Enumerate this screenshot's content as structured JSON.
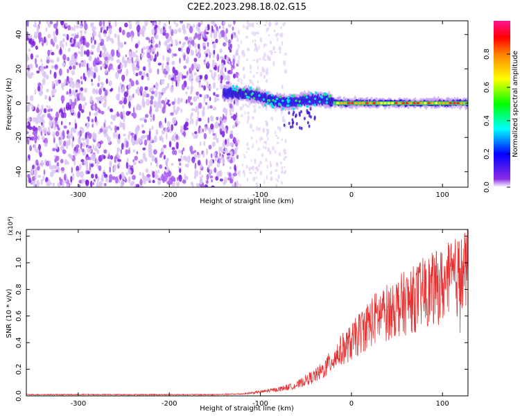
{
  "title": "C2E2.2023.298.18.02.G15",
  "colors": {
    "snr_line": "#e83232",
    "axis": "#000000",
    "spectrum_base": "#8a2be2"
  },
  "chart_data": [
    {
      "type": "heatmap",
      "name": "spectrogram",
      "xlabel": "Height of straight line (km)",
      "ylabel": "Frequency (Hz)",
      "xlim": [
        -357,
        128
      ],
      "ylim": [
        -49,
        48
      ],
      "xticks": [
        -300,
        -200,
        -100,
        0,
        100
      ],
      "xtick_labels": [
        "-300",
        "-200",
        "-100",
        "0",
        "100"
      ],
      "yticks": [
        -40,
        -20,
        0,
        20,
        40
      ],
      "ytick_labels": [
        "-40",
        "-20",
        "0",
        "20",
        "40"
      ],
      "colorbar": {
        "label": "Normalized spectral amplitude",
        "range": [
          0,
          1
        ],
        "ticks": [
          0.0,
          0.2,
          0.4,
          0.6,
          0.8
        ],
        "tick_labels": [
          "0.0",
          "0.2",
          "0.4",
          "0.6",
          "0.8"
        ],
        "colormap": [
          "#ffffff",
          "#8a2be2",
          "#0000ff",
          "#00ffff",
          "#00ff00",
          "#ffff00",
          "#ff8000",
          "#ff0000",
          "#ff1493"
        ]
      },
      "noise_region_x": [
        -357,
        -125
      ],
      "signal_centerline": [
        {
          "x": -130,
          "y": 6
        },
        {
          "x": -110,
          "y": 5
        },
        {
          "x": -90,
          "y": 2
        },
        {
          "x": -70,
          "y": 0
        },
        {
          "x": -50,
          "y": 2
        },
        {
          "x": -30,
          "y": 2
        },
        {
          "x": -10,
          "y": 0
        },
        {
          "x": 0,
          "y": 0
        },
        {
          "x": 50,
          "y": 0
        },
        {
          "x": 100,
          "y": 0
        },
        {
          "x": 128,
          "y": 0
        }
      ]
    },
    {
      "type": "line",
      "name": "snr",
      "xlabel": "Height of straight line (km)",
      "ylabel": "SNR (10 * v/v)",
      "y_multiplier": "(x10⁴)",
      "xlim": [
        -357,
        128
      ],
      "ylim": [
        0,
        1.25
      ],
      "xticks": [
        -300,
        -200,
        -100,
        0,
        100
      ],
      "xtick_labels": [
        "-300",
        "-200",
        "-100",
        "0",
        "100"
      ],
      "yticks": [
        0.0,
        0.2,
        0.4,
        0.6,
        0.8,
        1.0,
        1.2
      ],
      "ytick_labels": [
        "0.0",
        "0.2",
        "0.4",
        "0.6",
        "0.8",
        "1.0",
        "1.2"
      ],
      "series": [
        {
          "x": [
            -357,
            -300,
            -250,
            -200,
            -150,
            -120,
            -100,
            -80,
            -60,
            -50,
            -40,
            -30,
            -20,
            -10,
            0,
            10,
            20,
            30,
            40,
            50,
            60,
            70,
            80,
            90,
            100,
            110,
            120,
            128
          ],
          "y": [
            0.01,
            0.01,
            0.01,
            0.01,
            0.01,
            0.015,
            0.03,
            0.05,
            0.08,
            0.12,
            0.15,
            0.2,
            0.28,
            0.35,
            0.4,
            0.48,
            0.55,
            0.6,
            0.63,
            0.67,
            0.7,
            0.73,
            0.78,
            0.8,
            0.83,
            0.87,
            0.9,
            0.95
          ]
        }
      ]
    }
  ]
}
